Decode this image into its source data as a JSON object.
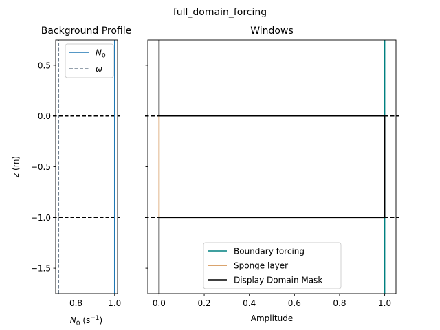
{
  "suptitle": "full_domain_forcing",
  "chart_data": [
    {
      "type": "line",
      "title": "Background Profile",
      "xlabel": "N0 (s⁻¹)",
      "ylabel": "z (m)",
      "xlim": [
        0.695,
        1.015
      ],
      "ylim": [
        -1.75,
        0.75
      ],
      "xticks": [
        0.8,
        1.0
      ],
      "xtick_labels": [
        "0.8",
        "1.0"
      ],
      "yticks": [
        0.5,
        0.0,
        -0.5,
        -1.0,
        -1.5
      ],
      "ytick_labels": [
        "0.5",
        "0.0",
        "−0.5",
        "−1.0",
        "−1.5"
      ],
      "series": [
        {
          "name": "N0",
          "style": "solid",
          "color": "#1f77b4",
          "x": [
            1.0,
            1.0
          ],
          "y": [
            -1.75,
            0.75
          ]
        },
        {
          "name": "ω",
          "style": "dashed",
          "color": "#708090",
          "x": [
            0.71,
            0.71
          ],
          "y": [
            -1.75,
            0.75
          ]
        }
      ],
      "hlines": [
        0.0,
        -1.0
      ],
      "legend": "top-right"
    },
    {
      "type": "line",
      "title": "Windows",
      "xlabel": "Amplitude",
      "ylabel": "",
      "xlim": [
        -0.05,
        1.05
      ],
      "ylim": [
        -1.75,
        0.75
      ],
      "xticks": [
        0.0,
        0.2,
        0.4,
        0.6,
        0.8,
        1.0
      ],
      "xtick_labels": [
        "0.0",
        "0.2",
        "0.4",
        "0.6",
        "0.8",
        "1.0"
      ],
      "yticks": [
        0.5,
        0.0,
        -0.5,
        -1.0,
        -1.5
      ],
      "series": [
        {
          "name": "Boundary forcing",
          "style": "solid",
          "color": "#008080",
          "x": [
            1.0,
            1.0
          ],
          "y": [
            -1.75,
            0.75
          ]
        },
        {
          "name": "Sponge layer",
          "style": "solid",
          "color": "#cd853f",
          "x": [
            0.0,
            0.0,
            0.0
          ],
          "y": [
            -1.0,
            -0.5,
            0.0
          ]
        },
        {
          "name": "Display Domain Mask",
          "style": "solid",
          "color": "#000000",
          "x": [
            0.0,
            0.0,
            1.0,
            1.0,
            0.0,
            0.0
          ],
          "y": [
            0.75,
            0.0,
            0.0,
            -1.0,
            -1.0,
            -1.75
          ]
        }
      ],
      "hlines": [
        0.0,
        -1.0
      ],
      "legend": "bottom-center"
    }
  ]
}
